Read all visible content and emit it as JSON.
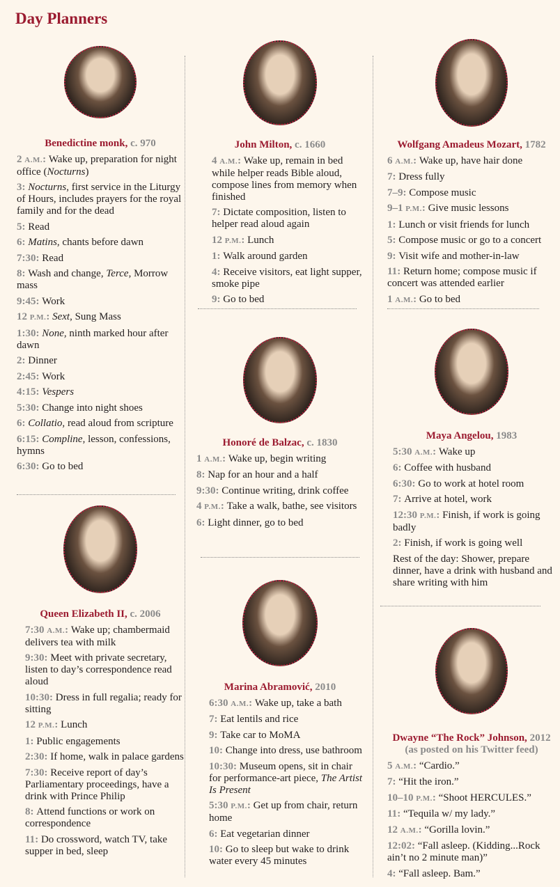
{
  "title": "Day Planners",
  "colors": {
    "accent": "#9b1b30",
    "time": "#8a8a8a",
    "background": "#fdf6ec"
  },
  "cards": [
    {
      "name": "Benedictine monk,",
      "year": "c. 970",
      "entries": [
        {
          "time": "2",
          "mer": "A.M.",
          "text": [
            {
              "t": "Wake up, preparation for night office ("
            },
            {
              "t": "Nocturns",
              "i": 1
            },
            {
              "t": ")"
            }
          ]
        },
        {
          "time": "3",
          "text": [
            {
              "t": "Nocturns",
              "i": 1
            },
            {
              "t": ", first service in the Liturgy of Hours, includes prayers for the royal family and for the dead"
            }
          ]
        },
        {
          "time": "5",
          "text": [
            {
              "t": "Read"
            }
          ]
        },
        {
          "time": "6",
          "text": [
            {
              "t": "Matins",
              "i": 1
            },
            {
              "t": ", chants before dawn"
            }
          ]
        },
        {
          "time": "7:30",
          "text": [
            {
              "t": "Read"
            }
          ]
        },
        {
          "time": "8",
          "text": [
            {
              "t": "Wash and change, "
            },
            {
              "t": "Terce",
              "i": 1
            },
            {
              "t": ", Morrow mass"
            }
          ]
        },
        {
          "time": "9:45",
          "text": [
            {
              "t": "Work"
            }
          ]
        },
        {
          "time": "12",
          "mer": "P.M.",
          "text": [
            {
              "t": "Sext",
              "i": 1
            },
            {
              "t": ", Sung Mass"
            }
          ]
        },
        {
          "time": "1:30",
          "text": [
            {
              "t": "None,",
              "i": 1
            },
            {
              "t": " ninth marked hour after dawn"
            }
          ]
        },
        {
          "time": "2",
          "text": [
            {
              "t": "Dinner"
            }
          ]
        },
        {
          "time": "2:45",
          "text": [
            {
              "t": "Work"
            }
          ]
        },
        {
          "time": "4:15",
          "text": [
            {
              "t": "Vespers",
              "i": 1
            }
          ]
        },
        {
          "time": "5:30",
          "text": [
            {
              "t": "Change into night shoes"
            }
          ]
        },
        {
          "time": "6",
          "text": [
            {
              "t": "Collatio,",
              "i": 1
            },
            {
              "t": " read aloud from scripture"
            }
          ]
        },
        {
          "time": "6:15",
          "text": [
            {
              "t": "Compline",
              "i": 1
            },
            {
              "t": ", lesson, confessions, hymns"
            }
          ]
        },
        {
          "time": "6:30",
          "text": [
            {
              "t": "Go to bed"
            }
          ]
        }
      ]
    },
    {
      "name": "Queen Elizabeth II,",
      "year": "c. 2006",
      "entries": [
        {
          "time": "7:30",
          "mer": "A.M.",
          "text": [
            {
              "t": "Wake up; chambermaid delivers tea with milk"
            }
          ]
        },
        {
          "time": "9:30",
          "text": [
            {
              "t": "Meet with private secretary, listen to day’s correspondence read aloud"
            }
          ]
        },
        {
          "time": "10:30",
          "text": [
            {
              "t": "Dress in full regalia; ready for sitting"
            }
          ]
        },
        {
          "time": "12",
          "mer": "P.M.",
          "text": [
            {
              "t": "Lunch"
            }
          ]
        },
        {
          "time": "1",
          "text": [
            {
              "t": "Public engagements"
            }
          ]
        },
        {
          "time": "2:30",
          "text": [
            {
              "t": "If home, walk in palace gardens"
            }
          ]
        },
        {
          "time": "7:30",
          "text": [
            {
              "t": "Receive report of day’s Parliamentary proceedings, have a drink with Prince Philip"
            }
          ]
        },
        {
          "time": "8",
          "text": [
            {
              "t": "Attend functions or work on correspondence"
            }
          ]
        },
        {
          "time": "11",
          "text": [
            {
              "t": "Do crossword, watch TV, take supper in bed, sleep"
            }
          ]
        }
      ]
    },
    {
      "name": "John Milton,",
      "year": "c. 1660",
      "entries": [
        {
          "time": "4",
          "mer": "A.M.",
          "text": [
            {
              "t": "Wake up, remain in bed while helper reads Bible aloud, compose lines from memory when finished"
            }
          ]
        },
        {
          "time": "7",
          "text": [
            {
              "t": "Dictate composition, listen to helper read aloud again"
            }
          ]
        },
        {
          "time": "12",
          "mer": "P.M.",
          "text": [
            {
              "t": "Lunch"
            }
          ]
        },
        {
          "time": "1",
          "text": [
            {
              "t": "Walk around garden"
            }
          ]
        },
        {
          "time": "4",
          "text": [
            {
              "t": "Receive visitors, eat light supper, smoke pipe"
            }
          ]
        },
        {
          "time": "9",
          "text": [
            {
              "t": "Go to bed"
            }
          ]
        }
      ]
    },
    {
      "name": "Honoré de Balzac,",
      "year": "c. 1830",
      "entries": [
        {
          "time": "1",
          "mer": "A.M.",
          "text": [
            {
              "t": "Wake up, begin writing"
            }
          ]
        },
        {
          "time": "8",
          "text": [
            {
              "t": "Nap for an hour and a half"
            }
          ]
        },
        {
          "time": "9:30",
          "text": [
            {
              "t": "Continue writing, drink coffee"
            }
          ]
        },
        {
          "time": "4",
          "mer": "P.M.",
          "text": [
            {
              "t": "Take a walk, bathe, see visitors"
            }
          ]
        },
        {
          "time": "6",
          "text": [
            {
              "t": "Light dinner, go to bed"
            }
          ]
        }
      ]
    },
    {
      "name": "Marina Abramović,",
      "year": "2010",
      "entries": [
        {
          "time": "6:30",
          "mer": "A.M.",
          "text": [
            {
              "t": "Wake up, take a bath"
            }
          ]
        },
        {
          "time": "7",
          "text": [
            {
              "t": "Eat lentils and rice"
            }
          ]
        },
        {
          "time": "9",
          "text": [
            {
              "t": "Take car to MoMA"
            }
          ]
        },
        {
          "time": "10",
          "text": [
            {
              "t": "Change into dress, use bathroom"
            }
          ]
        },
        {
          "time": "10:30",
          "text": [
            {
              "t": "Museum opens, sit in chair for performance-art piece, "
            },
            {
              "t": "The Artist Is Present",
              "i": 1
            }
          ]
        },
        {
          "time": "5:30",
          "mer": "P.M.",
          "text": [
            {
              "t": "Get up from chair, return home"
            }
          ]
        },
        {
          "time": "6",
          "text": [
            {
              "t": "Eat vegetarian dinner"
            }
          ]
        },
        {
          "time": "10",
          "text": [
            {
              "t": "Go to sleep but wake to drink water every 45 minutes"
            }
          ]
        }
      ]
    },
    {
      "name": "Wolfgang Amadeus Mozart,",
      "year": "1782",
      "entries": [
        {
          "time": "6",
          "mer": "A.M.",
          "text": [
            {
              "t": "Wake up, have hair done"
            }
          ]
        },
        {
          "time": "7",
          "text": [
            {
              "t": "Dress fully"
            }
          ]
        },
        {
          "time": "7–9",
          "text": [
            {
              "t": "Compose music"
            }
          ]
        },
        {
          "time": "9–1",
          "mer": "P.M.",
          "text": [
            {
              "t": "Give music lessons"
            }
          ]
        },
        {
          "time": "1",
          "text": [
            {
              "t": "Lunch or visit friends for lunch"
            }
          ]
        },
        {
          "time": "5",
          "text": [
            {
              "t": "Compose music or go to a concert"
            }
          ]
        },
        {
          "time": "9",
          "text": [
            {
              "t": "Visit wife and mother-in-law"
            }
          ]
        },
        {
          "time": "11",
          "text": [
            {
              "t": "Return home; compose music if concert was attended earlier"
            }
          ]
        },
        {
          "time": "1",
          "mer": "A.M.",
          "text": [
            {
              "t": "Go to bed"
            }
          ]
        }
      ]
    },
    {
      "name": "Maya Angelou,",
      "year": "1983",
      "entries": [
        {
          "time": "5:30",
          "mer": "A.M.",
          "text": [
            {
              "t": "Wake up"
            }
          ]
        },
        {
          "time": "6",
          "text": [
            {
              "t": "Coffee with husband"
            }
          ]
        },
        {
          "time": "6:30",
          "text": [
            {
              "t": "Go to work at hotel room"
            }
          ]
        },
        {
          "time": "7",
          "text": [
            {
              "t": "Arrive at hotel, work"
            }
          ]
        },
        {
          "time": "12:30",
          "mer": "P.M.",
          "text": [
            {
              "t": "Finish, if work is going badly"
            }
          ]
        },
        {
          "time": "2",
          "text": [
            {
              "t": "Finish, if work is going well"
            }
          ]
        },
        {
          "text": [
            {
              "t": "Rest of the day: Shower, prepare dinner, have a drink with husband and share writing with him"
            }
          ]
        }
      ]
    },
    {
      "name": "Dwayne “The Rock” Johnson,",
      "year": "2012",
      "subtitle": "(as posted on his Twitter feed)",
      "entries": [
        {
          "time": "5",
          "mer": "A.M.",
          "text": [
            {
              "t": "“Cardio.”"
            }
          ]
        },
        {
          "time": "7",
          "text": [
            {
              "t": "“Hit the iron.”"
            }
          ]
        },
        {
          "time": "10–10",
          "mer": "P.M.",
          "text": [
            {
              "t": "“Shoot HERCULES.”"
            }
          ]
        },
        {
          "time": "11",
          "text": [
            {
              "t": "“Tequila w/ my lady.”"
            }
          ]
        },
        {
          "time": "12",
          "mer": "A.M.",
          "text": [
            {
              "t": "“Gorilla lovin.”"
            }
          ]
        },
        {
          "time": "12:02",
          "text": [
            {
              "t": "“Fall asleep. (Kidding...Rock ain’t no 2 minute man)”"
            }
          ]
        },
        {
          "time": "4",
          "text": [
            {
              "t": "“Fall asleep. Bam.”"
            }
          ]
        }
      ]
    }
  ]
}
